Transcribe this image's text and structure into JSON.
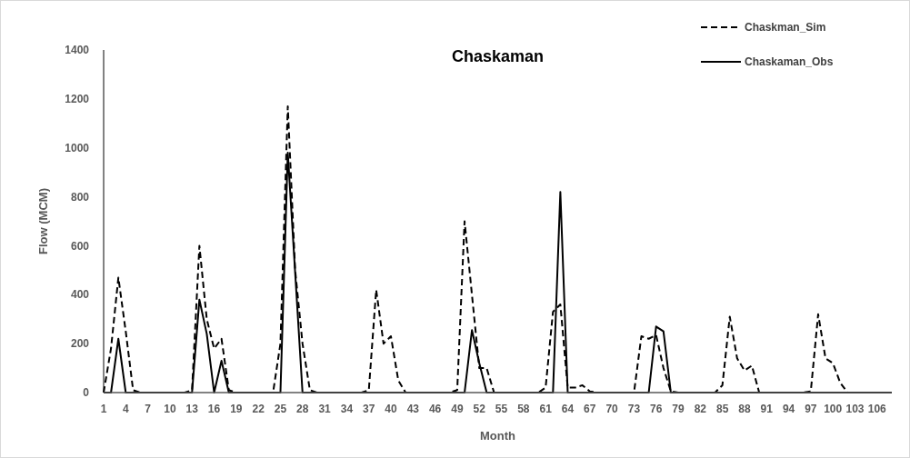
{
  "chart_data": {
    "type": "line",
    "title": "Chaskaman",
    "xlabel": "Month",
    "ylabel": "Flow (MCM)",
    "categories": [
      "1",
      null,
      null,
      "4",
      null,
      null,
      "7",
      null,
      null,
      "10",
      null,
      null,
      "13",
      null,
      null,
      "16",
      null,
      null,
      "19",
      null,
      null,
      "22",
      null,
      null,
      "25",
      null,
      null,
      "28",
      null,
      null,
      "31",
      null,
      null,
      "34",
      null,
      null,
      "37",
      null,
      null,
      "40",
      null,
      null,
      "43",
      null,
      null,
      "46",
      null,
      null,
      "49",
      null,
      null,
      "52",
      null,
      null,
      "55",
      null,
      null,
      "58",
      null,
      null,
      "61",
      null,
      null,
      "64",
      null,
      null,
      "67",
      null,
      null,
      "70",
      null,
      null,
      "73",
      null,
      null,
      "76",
      null,
      null,
      "79",
      null,
      null,
      "82",
      null,
      null,
      "85",
      null,
      null,
      "88",
      null,
      null,
      "91",
      null,
      null,
      "94",
      null,
      null,
      "97",
      null,
      null,
      "100",
      null,
      null,
      "103",
      null,
      null,
      "106",
      null,
      null
    ],
    "series": [
      {
        "name": "Chaskman_Sim",
        "color": "#000000",
        "line_style": "dashed",
        "values": [
          0,
          180,
          470,
          250,
          10,
          0,
          0,
          0,
          0,
          0,
          0,
          0,
          10,
          600,
          300,
          180,
          220,
          10,
          0,
          0,
          0,
          0,
          0,
          0,
          200,
          1170,
          500,
          200,
          10,
          0,
          0,
          0,
          0,
          0,
          0,
          0,
          10,
          420,
          200,
          230,
          50,
          0,
          0,
          0,
          0,
          0,
          0,
          0,
          10,
          700,
          400,
          100,
          100,
          0,
          0,
          0,
          0,
          0,
          0,
          0,
          20,
          330,
          360,
          20,
          20,
          30,
          5,
          0,
          0,
          0,
          0,
          0,
          0,
          230,
          220,
          235,
          100,
          5,
          0,
          0,
          0,
          0,
          0,
          0,
          30,
          310,
          140,
          90,
          110,
          0,
          0,
          0,
          0,
          0,
          0,
          0,
          5,
          320,
          140,
          120,
          40,
          0,
          0,
          0,
          0,
          0,
          0,
          0
        ]
      },
      {
        "name": "Chaskaman_Obs",
        "color": "#000000",
        "line_style": "solid",
        "values": [
          0,
          0,
          220,
          0,
          0,
          0,
          0,
          0,
          0,
          0,
          0,
          0,
          0,
          380,
          240,
          0,
          130,
          0,
          0,
          0,
          0,
          0,
          0,
          0,
          0,
          980,
          490,
          0,
          0,
          0,
          0,
          0,
          0,
          0,
          0,
          0,
          0,
          0,
          0,
          0,
          0,
          0,
          0,
          0,
          0,
          0,
          0,
          0,
          0,
          0,
          255,
          120,
          0,
          0,
          0,
          0,
          0,
          0,
          0,
          0,
          0,
          0,
          820,
          0,
          0,
          0,
          0,
          0,
          0,
          0,
          0,
          0,
          0,
          0,
          0,
          270,
          250,
          0,
          0,
          0,
          0,
          0,
          0,
          0,
          0,
          0,
          0,
          0,
          0,
          0,
          0,
          0,
          0,
          0,
          0,
          0,
          0,
          0,
          0,
          0,
          0,
          0,
          0,
          0,
          0,
          0,
          0,
          0
        ]
      }
    ],
    "ylim": [
      0,
      1400
    ],
    "yticks": [
      0,
      200,
      400,
      600,
      800,
      1000,
      1200,
      1400
    ],
    "grid": false,
    "legend": "top right",
    "marker": "none"
  }
}
